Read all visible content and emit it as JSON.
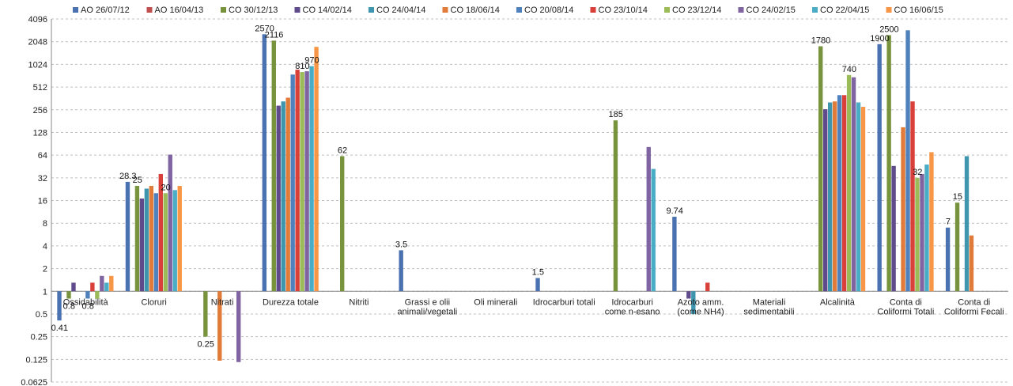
{
  "chart_data": {
    "type": "bar",
    "scale": "log2",
    "ylim": [
      0.0625,
      4096
    ],
    "yticks": [
      "0.0625",
      "0.125",
      "0.25",
      "0.5",
      "1",
      "2",
      "4",
      "8",
      "16",
      "32",
      "64",
      "128",
      "256",
      "512",
      "1024",
      "2048",
      "4096"
    ],
    "grid": true,
    "legend_position": "top",
    "categories": [
      [
        "Ossidabilità"
      ],
      [
        "Cloruri"
      ],
      [
        "Nitrati"
      ],
      [
        "Durezza totale"
      ],
      [
        "Nitriti"
      ],
      [
        "Grassi e olii",
        "animali/vegetali"
      ],
      [
        "Oli minerali"
      ],
      [
        "Idrocarburi totali"
      ],
      [
        "Idrocarburi",
        "come n-esano"
      ],
      [
        "Azoto amm.",
        "(come NH4)"
      ],
      [
        "Materiali",
        "sedimentabili"
      ],
      [
        "Alcalinità"
      ],
      [
        "Conta di",
        "Coliformi Totali"
      ],
      [
        "Conta di",
        "Coliformi Fecali"
      ]
    ],
    "series": [
      {
        "name": "AO  26/07/12",
        "color": "#4a72b0",
        "values": [
          0.41,
          28.3,
          null,
          2570,
          null,
          3.5,
          null,
          1.5,
          null,
          9.74,
          null,
          null,
          1900,
          7
        ]
      },
      {
        "name": "AO  16/04/13",
        "color": "#c0504d",
        "values": [
          null,
          null,
          null,
          null,
          null,
          null,
          null,
          null,
          null,
          null,
          null,
          null,
          null,
          null
        ]
      },
      {
        "name": "CO 30/12/13",
        "color": "#77933c",
        "values": [
          0.8,
          25,
          0.25,
          2116,
          62,
          null,
          null,
          null,
          185,
          null,
          null,
          1780,
          2500,
          15
        ]
      },
      {
        "name": "CO 14/02/14",
        "color": "#5f4b8b",
        "values": [
          1.3,
          17,
          null,
          290,
          null,
          null,
          null,
          null,
          null,
          0.8,
          null,
          260,
          46,
          null
        ]
      },
      {
        "name": "CO 24/04/14",
        "color": "#3d96ae",
        "values": [
          null,
          23,
          null,
          330,
          null,
          null,
          null,
          null,
          null,
          0.5,
          null,
          320,
          null,
          62
        ]
      },
      {
        "name": "CO 18/06/14",
        "color": "#e07b39",
        "values": [
          null,
          25,
          0.12,
          370,
          null,
          null,
          null,
          null,
          null,
          null,
          null,
          330,
          150,
          5.5
        ]
      },
      {
        "name": "CO 20/08/14",
        "color": "#4f81bd",
        "values": [
          0.8,
          20,
          null,
          750,
          null,
          null,
          null,
          null,
          null,
          null,
          null,
          400,
          2900,
          null
        ]
      },
      {
        "name": "CO 23/10/14",
        "color": "#d9403a",
        "values": [
          1.3,
          36,
          null,
          870,
          null,
          null,
          null,
          null,
          null,
          1.3,
          null,
          400,
          330,
          null
        ]
      },
      {
        "name": "CO 23/12/14",
        "color": "#9bbb59",
        "values": [
          0.8,
          20,
          null,
          810,
          null,
          null,
          null,
          null,
          null,
          null,
          null,
          740,
          32,
          null
        ]
      },
      {
        "name": "CO 24/02/15",
        "color": "#8064a2",
        "values": [
          1.6,
          65,
          0.115,
          830,
          null,
          null,
          null,
          null,
          82,
          null,
          null,
          690,
          36,
          null
        ]
      },
      {
        "name": "CO 22/04/15",
        "color": "#4bacc6",
        "values": [
          1.3,
          22,
          null,
          970,
          null,
          null,
          null,
          null,
          42,
          null,
          null,
          320,
          48,
          null
        ]
      },
      {
        "name": "CO 16/06/15",
        "color": "#f79646",
        "values": [
          1.6,
          25,
          null,
          1750,
          null,
          null,
          null,
          null,
          null,
          null,
          null,
          280,
          70,
          null
        ]
      }
    ],
    "data_labels": [
      {
        "text": "0.41",
        "category": 0,
        "series": 0
      },
      {
        "text": "0.8",
        "category": 0,
        "series": 2
      },
      {
        "text": "0.8",
        "category": 0,
        "series": 6
      },
      {
        "text": "28.3",
        "category": 1,
        "series": 0
      },
      {
        "text": "25",
        "category": 1,
        "series": 2
      },
      {
        "text": "20",
        "category": 1,
        "series": 8
      },
      {
        "text": "0.25",
        "category": 2,
        "series": 2
      },
      {
        "text": "2570",
        "category": 3,
        "series": 0
      },
      {
        "text": "2116",
        "category": 3,
        "series": 2
      },
      {
        "text": "810",
        "category": 3,
        "series": 8
      },
      {
        "text": "970",
        "category": 3,
        "series": 10
      },
      {
        "text": "62",
        "category": 4,
        "series": 2
      },
      {
        "text": "3.5",
        "category": 5,
        "series": 0
      },
      {
        "text": "1.5",
        "category": 7,
        "series": 0
      },
      {
        "text": "185",
        "category": 8,
        "series": 2
      },
      {
        "text": "9.74",
        "category": 9,
        "series": 0
      },
      {
        "text": "1780",
        "category": 11,
        "series": 2
      },
      {
        "text": "740",
        "category": 11,
        "series": 8
      },
      {
        "text": "1900",
        "category": 12,
        "series": 0
      },
      {
        "text": "2500",
        "category": 12,
        "series": 2
      },
      {
        "text": "32",
        "category": 12,
        "series": 8
      },
      {
        "text": "7",
        "category": 13,
        "series": 0
      },
      {
        "text": "15",
        "category": 13,
        "series": 2
      }
    ]
  }
}
